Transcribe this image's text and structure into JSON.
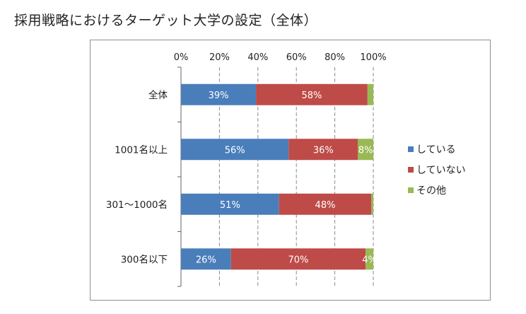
{
  "page": {
    "title": "採用戦略におけるターゲット大学の設定（全体）"
  },
  "chart_data": {
    "type": "bar",
    "orientation": "horizontal",
    "stacked": true,
    "title": "採用戦略におけるターゲット大学の設定（全体）",
    "xlim": [
      0,
      100
    ],
    "x_ticks": [
      "0%",
      "20%",
      "40%",
      "60%",
      "80%",
      "100%"
    ],
    "categories": [
      "全体",
      "1001名以上",
      "301～1000名",
      "300名以下"
    ],
    "series": [
      {
        "name": "している",
        "color": "#4a7ebb",
        "values": [
          39,
          56,
          51,
          26
        ],
        "labels": [
          "39%",
          "56%",
          "51%",
          "26%"
        ]
      },
      {
        "name": "していない",
        "color": "#be4b48",
        "values": [
          58,
          36,
          48,
          70
        ],
        "labels": [
          "58%",
          "36%",
          "48%",
          "70%"
        ]
      },
      {
        "name": "その他",
        "color": "#98b954",
        "values": [
          3,
          8,
          1,
          4
        ],
        "labels": [
          "",
          "8%",
          "",
          "4%"
        ]
      }
    ],
    "grid": true,
    "legend_position": "right"
  }
}
